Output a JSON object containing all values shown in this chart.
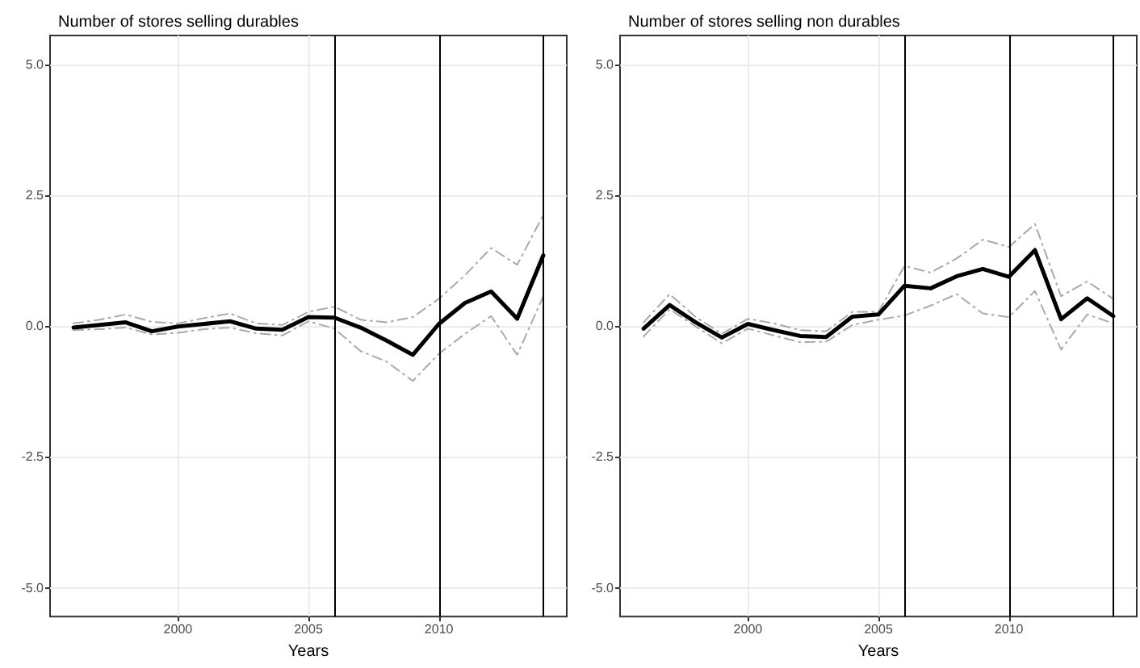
{
  "chart_data": [
    {
      "type": "line",
      "title": "Number of stores selling durables",
      "xlabel": "Years",
      "x": [
        1996,
        1997,
        1998,
        1999,
        2000,
        2001,
        2002,
        2003,
        2004,
        2005,
        2006,
        2007,
        2008,
        2009,
        2010,
        2011,
        2012,
        2013,
        2014
      ],
      "series": [
        {
          "color": "#aaaaaa",
          "line_style": "dashed",
          "values": [
            0.05,
            0.12,
            0.22,
            0.08,
            0.05,
            0.15,
            0.24,
            0.05,
            0.02,
            0.27,
            0.37,
            0.12,
            0.07,
            0.17,
            0.52,
            0.97,
            1.49,
            1.17,
            2.12
          ]
        },
        {
          "color": "#aaaaaa",
          "line_style": "dashed",
          "values": [
            -0.08,
            -0.06,
            -0.03,
            -0.16,
            -0.13,
            -0.06,
            -0.03,
            -0.14,
            -0.18,
            0.09,
            -0.05,
            -0.48,
            -0.68,
            -1.05,
            -0.53,
            -0.15,
            0.19,
            -0.55,
            0.57
          ]
        },
        {
          "color": "#000000",
          "line_style": "solid",
          "values": [
            -0.03,
            0.02,
            0.07,
            -0.1,
            -0.01,
            0.04,
            0.09,
            -0.05,
            -0.07,
            0.17,
            0.16,
            -0.03,
            -0.28,
            -0.55,
            0.04,
            0.44,
            0.66,
            0.14,
            1.35
          ]
        }
      ],
      "xlim": [
        1995.1,
        2014.9
      ],
      "xticks": [
        2000,
        2005,
        2010
      ],
      "ylim": [
        -5.55,
        5.55
      ],
      "yticks": [
        {
          "value": -5,
          "label": "-5.0"
        },
        {
          "value": -2.5,
          "label": "-2.5"
        },
        {
          "value": 0,
          "label": "0.0"
        },
        {
          "value": 2.5,
          "label": "2.5"
        },
        {
          "value": 5,
          "label": "5.0"
        }
      ],
      "ref_lines": [
        {
          "axis": "x",
          "value": 2006,
          "color": "#000000"
        },
        {
          "axis": "x",
          "value": 2010,
          "color": "#000000"
        },
        {
          "axis": "x",
          "value": 2014,
          "color": "#000000"
        }
      ],
      "grid": true,
      "marker": "none"
    },
    {
      "type": "line",
      "title": "Number of stores selling non durables",
      "xlabel": "Years",
      "x": [
        1996,
        1997,
        1998,
        1999,
        2000,
        2001,
        2002,
        2003,
        2004,
        2005,
        2006,
        2007,
        2008,
        2009,
        2010,
        2011,
        2012,
        2013,
        2014
      ],
      "series": [
        {
          "color": "#aaaaaa",
          "line_style": "dashed",
          "values": [
            0.07,
            0.61,
            0.17,
            -0.15,
            0.14,
            0.05,
            -0.08,
            -0.1,
            0.27,
            0.27,
            1.15,
            1.02,
            1.29,
            1.65,
            1.51,
            1.95,
            0.57,
            0.85,
            0.52
          ]
        },
        {
          "color": "#aaaaaa",
          "line_style": "dashed",
          "values": [
            -0.2,
            0.32,
            -0.01,
            -0.33,
            -0.05,
            -0.18,
            -0.31,
            -0.3,
            0.02,
            0.12,
            0.2,
            0.39,
            0.61,
            0.24,
            0.17,
            0.67,
            -0.45,
            0.22,
            0.05
          ]
        },
        {
          "color": "#000000",
          "line_style": "solid",
          "values": [
            -0.05,
            0.4,
            0.07,
            -0.22,
            0.04,
            -0.08,
            -0.19,
            -0.21,
            0.18,
            0.22,
            0.77,
            0.72,
            0.95,
            1.09,
            0.94,
            1.45,
            0.13,
            0.53,
            0.19
          ]
        }
      ],
      "xlim": [
        1995.1,
        2014.9
      ],
      "xticks": [
        2000,
        2005,
        2010
      ],
      "ylim": [
        -5.55,
        5.55
      ],
      "yticks": [
        {
          "value": -5,
          "label": "-5.0"
        },
        {
          "value": -2.5,
          "label": "-2.5"
        },
        {
          "value": 0,
          "label": "0.0"
        },
        {
          "value": 2.5,
          "label": "2.5"
        },
        {
          "value": 5,
          "label": "5.0"
        }
      ],
      "ref_lines": [
        {
          "axis": "x",
          "value": 2006,
          "color": "#000000"
        },
        {
          "axis": "x",
          "value": 2010,
          "color": "#000000"
        },
        {
          "axis": "x",
          "value": 2014,
          "color": "#000000"
        }
      ],
      "grid": true,
      "marker": "none"
    }
  ]
}
